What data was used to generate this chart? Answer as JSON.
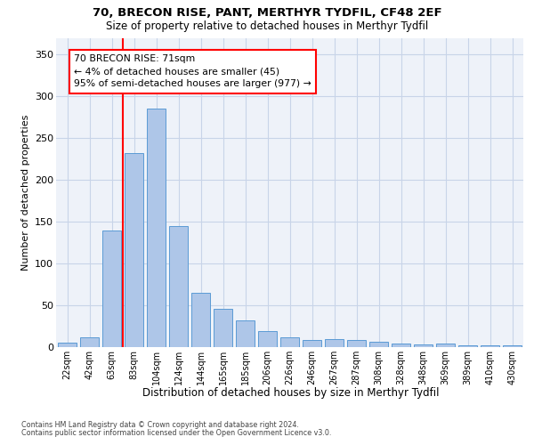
{
  "title1": "70, BRECON RISE, PANT, MERTHYR TYDFIL, CF48 2EF",
  "title2": "Size of property relative to detached houses in Merthyr Tydfil",
  "xlabel": "Distribution of detached houses by size in Merthyr Tydfil",
  "ylabel": "Number of detached properties",
  "categories": [
    "22sqm",
    "42sqm",
    "63sqm",
    "83sqm",
    "104sqm",
    "124sqm",
    "144sqm",
    "165sqm",
    "185sqm",
    "206sqm",
    "226sqm",
    "246sqm",
    "267sqm",
    "287sqm",
    "308sqm",
    "328sqm",
    "348sqm",
    "369sqm",
    "389sqm",
    "410sqm",
    "430sqm"
  ],
  "values": [
    5,
    12,
    140,
    232,
    285,
    145,
    65,
    46,
    32,
    19,
    12,
    9,
    10,
    8,
    6,
    4,
    3,
    4,
    2,
    2,
    2
  ],
  "bar_color": "#aec6e8",
  "bar_edge_color": "#5b9bd5",
  "grid_color": "#c8d4e8",
  "background_color": "#eef2f9",
  "red_line_x": 2.5,
  "annotation_text": "70 BRECON RISE: 71sqm\n← 4% of detached houses are smaller (45)\n95% of semi-detached houses are larger (977) →",
  "footer1": "Contains HM Land Registry data © Crown copyright and database right 2024.",
  "footer2": "Contains public sector information licensed under the Open Government Licence v3.0.",
  "ylim": [
    0,
    370
  ],
  "yticks": [
    0,
    50,
    100,
    150,
    200,
    250,
    300,
    350
  ]
}
